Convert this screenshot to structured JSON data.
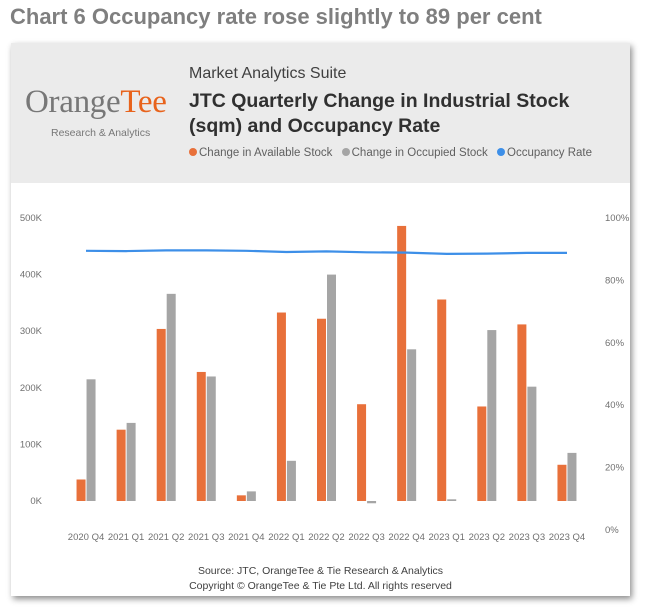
{
  "page": {
    "heading": "Chart 6 Occupancy rate rose slightly to 89 per cent"
  },
  "card": {
    "logo_text_main": "Orange",
    "logo_text_accent": "Tee",
    "logo_subtitle": "Research & Analytics",
    "suite_name": "Market Analytics Suite",
    "title": "JTC Quarterly Change in Industrial Stock (sqm) and Occupancy Rate",
    "source": "Source: JTC, OrangeTee & Tie Research & Analytics",
    "copyright": "Copyright © OrangeTee & Tie Pte Ltd. All rights reserved"
  },
  "chart_data": {
    "type": "bar",
    "title": "JTC Quarterly Change in Industrial Stock (sqm) and Occupancy Rate",
    "categories": [
      "2020 Q4",
      "2021 Q1",
      "2021 Q2",
      "2021 Q3",
      "2021 Q4",
      "2022 Q1",
      "2022 Q2",
      "2022 Q3",
      "2022 Q4",
      "2023 Q1",
      "2023 Q2",
      "2023 Q3",
      "2023 Q4"
    ],
    "series": [
      {
        "name": "Change in Available Stock",
        "type": "bar",
        "axis": "left",
        "color": "#e8703a",
        "values": [
          38000,
          126000,
          304000,
          228000,
          10000,
          333000,
          322000,
          171000,
          486000,
          356000,
          167000,
          312000,
          64000
        ]
      },
      {
        "name": "Change in Occupied Stock",
        "type": "bar",
        "axis": "left",
        "color": "#a5a5a5",
        "values": [
          215000,
          138000,
          366000,
          220000,
          17000,
          71000,
          400000,
          -4000,
          268000,
          3000,
          302000,
          202000,
          85000
        ]
      },
      {
        "name": "Occupancy Rate",
        "type": "line",
        "axis": "right",
        "color": "#3d8fe8",
        "values": [
          89.5,
          89.4,
          89.6,
          89.6,
          89.5,
          89.1,
          89.3,
          89.0,
          88.9,
          88.5,
          88.6,
          88.8,
          88.8
        ]
      }
    ],
    "left_axis": {
      "ylim": [
        0,
        500000
      ],
      "ticks": [
        0,
        100000,
        200000,
        300000,
        400000,
        500000
      ],
      "tick_labels": [
        "0K",
        "100K",
        "200K",
        "300K",
        "400K",
        "500K"
      ]
    },
    "right_axis": {
      "ylim": [
        0,
        100
      ],
      "ticks": [
        0,
        20,
        40,
        60,
        80,
        100
      ],
      "tick_labels": [
        "0%",
        "20%",
        "40%",
        "60%",
        "80%",
        "100%"
      ]
    },
    "legend_position": "top",
    "grid": false
  }
}
